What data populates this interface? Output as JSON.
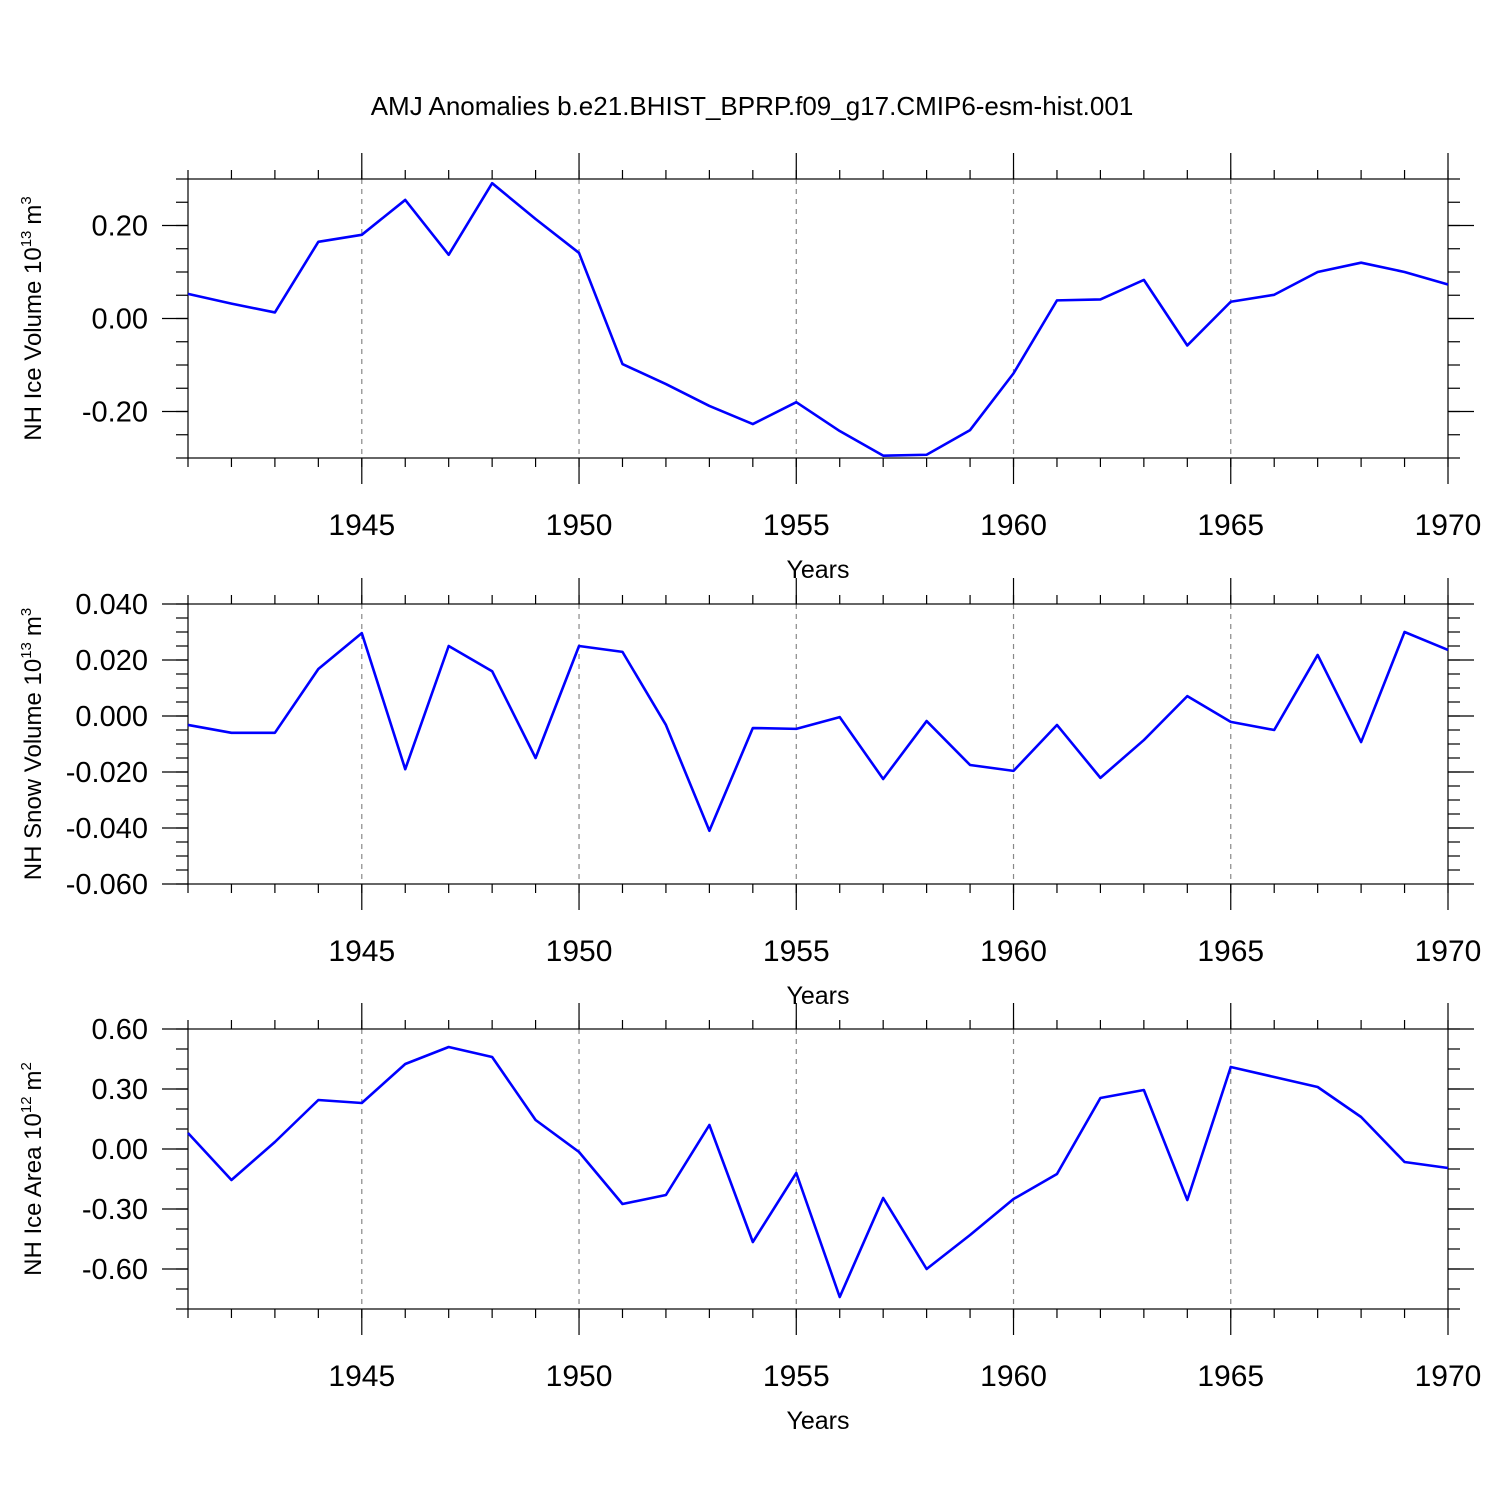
{
  "chart_data": [
    {
      "type": "line",
      "title": "AMJ Anomalies b.e21.BHIST_BPRP.f09_g17.CMIP6-esm-hist.001",
      "xlabel": "Years",
      "ylabel": "NH Ice Volume 10",
      "ylabel_exp": "13",
      "ylabel_unit": "m",
      "ylabel_unit_exp": "3",
      "x": [
        1941,
        1942,
        1943,
        1944,
        1945,
        1946,
        1947,
        1948,
        1949,
        1950,
        1951,
        1952,
        1953,
        1954,
        1955,
        1956,
        1957,
        1958,
        1959,
        1960,
        1961,
        1962,
        1963,
        1964,
        1965,
        1966,
        1967,
        1968,
        1969,
        1970
      ],
      "values": [
        0.053,
        0.032,
        0.013,
        0.165,
        0.18,
        0.255,
        0.137,
        0.291,
        0.214,
        0.141,
        -0.098,
        -0.141,
        -0.188,
        -0.227,
        -0.18,
        -0.242,
        -0.295,
        -0.293,
        -0.24,
        -0.118,
        0.039,
        0.041,
        0.083,
        -0.058,
        0.036,
        0.051,
        0.1,
        0.12,
        0.1,
        0.073
      ],
      "color": "#0000ff",
      "xlim": [
        1941,
        1970
      ],
      "xticks": [
        1945,
        1950,
        1955,
        1960,
        1965,
        1970
      ],
      "ylim": [
        -0.3,
        0.3
      ],
      "yticks": [
        {
          "value": -0.2,
          "label": "-0.20"
        },
        {
          "value": 0,
          "label": "0.00"
        },
        {
          "value": 0.2,
          "label": "0.20"
        }
      ],
      "grid": true
    },
    {
      "type": "line",
      "xlabel": "Years",
      "ylabel": "NH Snow Volume 10",
      "ylabel_exp": "13",
      "ylabel_unit": "m",
      "ylabel_unit_exp": "3",
      "x": [
        1941,
        1942,
        1943,
        1944,
        1945,
        1946,
        1947,
        1948,
        1949,
        1950,
        1951,
        1952,
        1953,
        1954,
        1955,
        1956,
        1957,
        1958,
        1959,
        1960,
        1961,
        1962,
        1963,
        1964,
        1965,
        1966,
        1967,
        1968,
        1969,
        1970
      ],
      "values": [
        -0.0032,
        -0.006,
        -0.006,
        0.0168,
        0.0296,
        -0.019,
        0.025,
        0.016,
        -0.015,
        0.025,
        0.0229,
        -0.0032,
        -0.041,
        -0.0043,
        -0.0046,
        -0.0004,
        -0.0225,
        -0.0018,
        -0.0175,
        -0.0196,
        -0.0032,
        -0.0221,
        -0.0086,
        0.0071,
        -0.0021,
        -0.005,
        0.0218,
        -0.0093,
        0.03,
        0.0236
      ],
      "color": "#0000ff",
      "xlim": [
        1941,
        1970
      ],
      "xticks": [
        1945,
        1950,
        1955,
        1960,
        1965,
        1970
      ],
      "ylim": [
        -0.06,
        0.04
      ],
      "yticks": [
        {
          "value": -0.06,
          "label": "-0.060"
        },
        {
          "value": -0.04,
          "label": "-0.040"
        },
        {
          "value": -0.02,
          "label": "-0.020"
        },
        {
          "value": 0,
          "label": "0.000"
        },
        {
          "value": 0.02,
          "label": "0.020"
        },
        {
          "value": 0.04,
          "label": "0.040"
        }
      ],
      "grid": true
    },
    {
      "type": "line",
      "xlabel": "Years",
      "ylabel": "NH Ice Area 10",
      "ylabel_exp": "12",
      "ylabel_unit": "m",
      "ylabel_unit_exp": "2",
      "x": [
        1941,
        1942,
        1943,
        1944,
        1945,
        1946,
        1947,
        1948,
        1949,
        1950,
        1951,
        1952,
        1953,
        1954,
        1955,
        1956,
        1957,
        1958,
        1959,
        1960,
        1961,
        1962,
        1963,
        1964,
        1965,
        1966,
        1967,
        1968,
        1969,
        1970
      ],
      "values": [
        0.08,
        -0.155,
        0.035,
        0.245,
        0.23,
        0.425,
        0.51,
        0.46,
        0.145,
        -0.015,
        -0.275,
        -0.23,
        0.12,
        -0.465,
        -0.12,
        -0.74,
        -0.245,
        -0.6,
        -0.43,
        -0.25,
        -0.125,
        0.255,
        0.295,
        -0.255,
        0.41,
        0.36,
        0.31,
        0.16,
        -0.065,
        -0.095
      ],
      "color": "#0000ff",
      "xlim": [
        1941,
        1970
      ],
      "xticks": [
        1945,
        1950,
        1955,
        1960,
        1965,
        1970
      ],
      "ylim": [
        -0.8,
        0.6
      ],
      "yticks": [
        {
          "value": -0.6,
          "label": "-0.60"
        },
        {
          "value": -0.3,
          "label": "-0.30"
        },
        {
          "value": 0,
          "label": "0.00"
        },
        {
          "value": 0.3,
          "label": "0.30"
        },
        {
          "value": 0.6,
          "label": "0.60"
        }
      ],
      "grid": true
    }
  ]
}
